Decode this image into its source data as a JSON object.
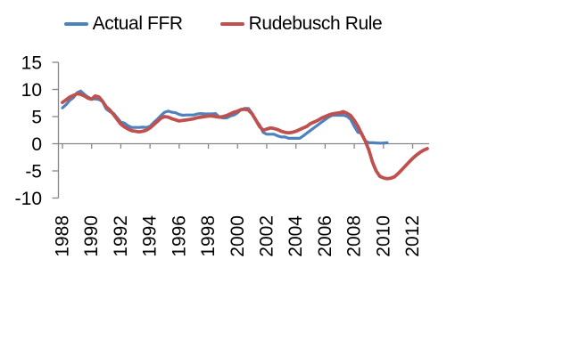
{
  "legend": {
    "items": [
      {
        "label": "Actual FFR",
        "color": "#4F81BD"
      },
      {
        "label": "Rudebusch Rule",
        "color": "#C0504D"
      }
    ],
    "position": "top-center"
  },
  "chart_data": {
    "type": "line",
    "title": "",
    "xlabel": "",
    "ylabel": "",
    "grid": false,
    "background": "#FFFFFF",
    "axis_color": "#868686",
    "text_color": "#000000",
    "legend_position": "top-center",
    "x_axis": {
      "ticks": [
        1988,
        1990,
        1992,
        1994,
        1996,
        1998,
        2000,
        2002,
        2004,
        2006,
        2008,
        2010,
        2012
      ],
      "tick_labels": [
        "1988",
        "1990",
        "1992",
        "1994",
        "1996",
        "1998",
        "2000",
        "2002",
        "2004",
        "2006",
        "2008",
        "2010",
        "2012"
      ],
      "label_rotation": -90,
      "range": [
        1988,
        2013.4
      ]
    },
    "y_axis": {
      "ticks": [
        15,
        10,
        5,
        0,
        -5,
        -10
      ],
      "tick_labels": [
        "15",
        "10",
        "5",
        "0",
        "-5",
        "-10"
      ],
      "range": [
        -10,
        15
      ]
    },
    "frequency": "quarterly",
    "start_year": 1988,
    "series": [
      {
        "name": "Actual FFR",
        "color": "#4F81BD",
        "stroke_width": 3.2,
        "values": [
          6.6,
          7.2,
          8.0,
          8.5,
          9.4,
          9.7,
          9.1,
          8.6,
          8.25,
          8.25,
          8.15,
          7.75,
          6.4,
          5.9,
          5.6,
          4.8,
          4.0,
          3.8,
          3.3,
          3.0,
          3.0,
          3.0,
          3.05,
          3.0,
          3.2,
          3.9,
          4.5,
          5.2,
          5.8,
          6.0,
          5.8,
          5.7,
          5.4,
          5.25,
          5.3,
          5.3,
          5.3,
          5.5,
          5.55,
          5.5,
          5.5,
          5.5,
          5.55,
          4.9,
          4.75,
          4.75,
          5.1,
          5.3,
          5.7,
          6.3,
          6.5,
          6.5,
          5.6,
          4.3,
          3.5,
          2.1,
          1.75,
          1.75,
          1.75,
          1.45,
          1.25,
          1.25,
          1.0,
          1.0,
          1.0,
          1.0,
          1.45,
          1.95,
          2.45,
          2.95,
          3.45,
          3.95,
          4.45,
          4.9,
          5.25,
          5.25,
          5.25,
          5.25,
          5.05,
          4.5,
          3.2,
          2.1,
          1.95,
          0.5,
          0.2,
          0.2,
          0.15,
          0.12,
          0.13,
          0.18
        ]
      },
      {
        "name": "Rudebusch Rule",
        "color": "#C0504D",
        "stroke_width": 3.8,
        "values": [
          7.6,
          8.1,
          8.6,
          8.9,
          9.2,
          9.1,
          8.8,
          8.4,
          8.2,
          8.8,
          8.6,
          7.8,
          6.8,
          6.2,
          5.4,
          4.5,
          3.6,
          3.1,
          2.7,
          2.4,
          2.3,
          2.2,
          2.3,
          2.5,
          2.9,
          3.5,
          4.1,
          4.7,
          5.0,
          4.9,
          4.6,
          4.4,
          4.2,
          4.3,
          4.4,
          4.5,
          4.6,
          4.8,
          4.9,
          5.0,
          5.1,
          5.1,
          5.0,
          4.9,
          5.0,
          5.2,
          5.5,
          5.8,
          6.0,
          6.3,
          6.35,
          6.2,
          5.5,
          4.4,
          3.2,
          2.5,
          2.7,
          2.9,
          2.8,
          2.6,
          2.3,
          2.1,
          2.0,
          2.1,
          2.3,
          2.6,
          2.9,
          3.2,
          3.7,
          4.0,
          4.3,
          4.7,
          5.0,
          5.3,
          5.5,
          5.6,
          5.7,
          5.9,
          5.6,
          5.2,
          4.3,
          3.2,
          1.8,
          0.5,
          -1.2,
          -3.4,
          -5.0,
          -6.0,
          -6.3,
          -6.45,
          -6.35,
          -6.1,
          -5.5,
          -4.8,
          -4.1,
          -3.4,
          -2.7,
          -2.1,
          -1.6,
          -1.2,
          -0.9
        ]
      }
    ]
  }
}
